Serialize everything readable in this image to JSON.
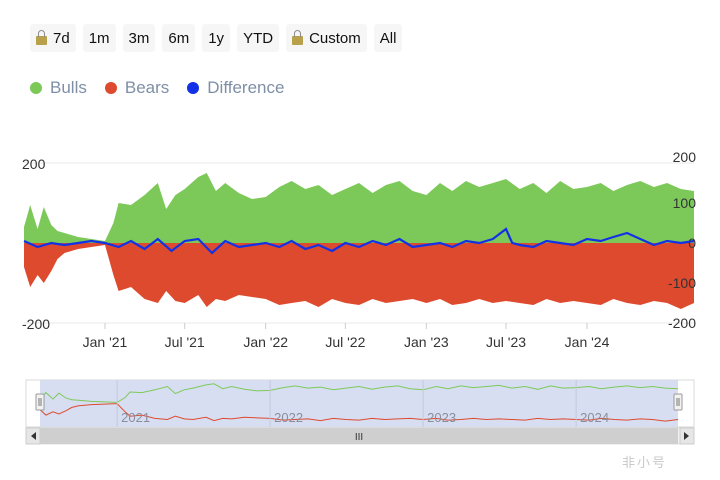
{
  "range_selector": {
    "buttons": [
      {
        "label": "7d",
        "locked": true
      },
      {
        "label": "1m",
        "locked": false
      },
      {
        "label": "3m",
        "locked": false
      },
      {
        "label": "6m",
        "locked": false
      },
      {
        "label": "1y",
        "locked": false
      },
      {
        "label": "YTD",
        "locked": false
      },
      {
        "label": "Custom",
        "locked": true
      },
      {
        "label": "All",
        "locked": false
      }
    ]
  },
  "watermark": "非小号",
  "chart_data": {
    "type": "area",
    "title": "",
    "x_range": [
      "2020-07-01",
      "2024-08-31"
    ],
    "x_ticks": [
      {
        "date": "2021-01-01",
        "label": "Jan '21"
      },
      {
        "date": "2021-07-01",
        "label": "Jul '21"
      },
      {
        "date": "2022-01-01",
        "label": "Jan '22"
      },
      {
        "date": "2022-07-01",
        "label": "Jul '22"
      },
      {
        "date": "2023-01-01",
        "label": "Jan '23"
      },
      {
        "date": "2023-07-01",
        "label": "Jul '23"
      },
      {
        "date": "2024-01-01",
        "label": "Jan '24"
      }
    ],
    "y_left": {
      "range": [
        -200,
        200
      ],
      "ticks": [
        200,
        -200
      ]
    },
    "y_right": {
      "range": [
        -200,
        200
      ],
      "ticks": [
        200,
        100,
        0,
        -100,
        -200
      ]
    },
    "grid": true,
    "legend_position": "top-left",
    "series": [
      {
        "name": "Bulls",
        "color": "#7cc95a",
        "points": [
          [
            "2020-07-01",
            40
          ],
          [
            "2020-07-15",
            95
          ],
          [
            "2020-08-01",
            35
          ],
          [
            "2020-08-15",
            90
          ],
          [
            "2020-09-01",
            45
          ],
          [
            "2020-09-15",
            30
          ],
          [
            "2020-10-01",
            25
          ],
          [
            "2020-11-01",
            15
          ],
          [
            "2020-12-01",
            10
          ],
          [
            "2021-01-01",
            5
          ],
          [
            "2021-01-20",
            50
          ],
          [
            "2021-02-01",
            100
          ],
          [
            "2021-03-01",
            95
          ],
          [
            "2021-04-01",
            120
          ],
          [
            "2021-05-01",
            150
          ],
          [
            "2021-05-20",
            85
          ],
          [
            "2021-06-10",
            120
          ],
          [
            "2021-07-01",
            135
          ],
          [
            "2021-08-01",
            165
          ],
          [
            "2021-08-20",
            175
          ],
          [
            "2021-09-10",
            130
          ],
          [
            "2021-10-01",
            150
          ],
          [
            "2021-11-01",
            125
          ],
          [
            "2021-12-01",
            110
          ],
          [
            "2022-01-01",
            115
          ],
          [
            "2022-02-01",
            140
          ],
          [
            "2022-03-01",
            155
          ],
          [
            "2022-04-01",
            135
          ],
          [
            "2022-05-01",
            145
          ],
          [
            "2022-06-01",
            120
          ],
          [
            "2022-07-01",
            135
          ],
          [
            "2022-08-01",
            150
          ],
          [
            "2022-09-01",
            125
          ],
          [
            "2022-10-01",
            145
          ],
          [
            "2022-11-01",
            155
          ],
          [
            "2022-12-01",
            130
          ],
          [
            "2023-01-01",
            120
          ],
          [
            "2023-02-01",
            150
          ],
          [
            "2023-03-01",
            130
          ],
          [
            "2023-04-01",
            155
          ],
          [
            "2023-05-01",
            140
          ],
          [
            "2023-06-01",
            150
          ],
          [
            "2023-07-01",
            160
          ],
          [
            "2023-08-01",
            135
          ],
          [
            "2023-09-01",
            150
          ],
          [
            "2023-10-01",
            125
          ],
          [
            "2023-11-01",
            155
          ],
          [
            "2023-12-01",
            135
          ],
          [
            "2024-01-01",
            140
          ],
          [
            "2024-02-01",
            150
          ],
          [
            "2024-03-01",
            130
          ],
          [
            "2024-04-01",
            145
          ],
          [
            "2024-05-01",
            155
          ],
          [
            "2024-06-01",
            140
          ],
          [
            "2024-07-01",
            150
          ],
          [
            "2024-08-01",
            135
          ],
          [
            "2024-08-31",
            130
          ]
        ]
      },
      {
        "name": "Bears",
        "color": "#dd4a2e",
        "points": [
          [
            "2020-07-01",
            -60
          ],
          [
            "2020-07-15",
            -110
          ],
          [
            "2020-08-01",
            -80
          ],
          [
            "2020-08-15",
            -100
          ],
          [
            "2020-09-01",
            -70
          ],
          [
            "2020-09-15",
            -40
          ],
          [
            "2020-10-01",
            -25
          ],
          [
            "2020-11-01",
            -15
          ],
          [
            "2020-12-01",
            -10
          ],
          [
            "2021-01-01",
            -5
          ],
          [
            "2021-01-20",
            -80
          ],
          [
            "2021-02-01",
            -120
          ],
          [
            "2021-03-01",
            -110
          ],
          [
            "2021-04-01",
            -140
          ],
          [
            "2021-05-01",
            -150
          ],
          [
            "2021-05-20",
            -120
          ],
          [
            "2021-06-10",
            -145
          ],
          [
            "2021-07-01",
            -150
          ],
          [
            "2021-08-01",
            -130
          ],
          [
            "2021-08-20",
            -160
          ],
          [
            "2021-09-10",
            -140
          ],
          [
            "2021-10-01",
            -145
          ],
          [
            "2021-11-01",
            -130
          ],
          [
            "2021-12-01",
            -135
          ],
          [
            "2022-01-01",
            -140
          ],
          [
            "2022-02-01",
            -155
          ],
          [
            "2022-03-01",
            -150
          ],
          [
            "2022-04-01",
            -145
          ],
          [
            "2022-05-01",
            -160
          ],
          [
            "2022-06-01",
            -140
          ],
          [
            "2022-07-01",
            -150
          ],
          [
            "2022-08-01",
            -155
          ],
          [
            "2022-09-01",
            -140
          ],
          [
            "2022-10-01",
            -150
          ],
          [
            "2022-11-01",
            -145
          ],
          [
            "2022-12-01",
            -140
          ],
          [
            "2023-01-01",
            -150
          ],
          [
            "2023-02-01",
            -140
          ],
          [
            "2023-03-01",
            -155
          ],
          [
            "2023-04-01",
            -150
          ],
          [
            "2023-05-01",
            -140
          ],
          [
            "2023-06-01",
            -150
          ],
          [
            "2023-07-01",
            -145
          ],
          [
            "2023-08-01",
            -150
          ],
          [
            "2023-09-01",
            -155
          ],
          [
            "2023-10-01",
            -140
          ],
          [
            "2023-11-01",
            -150
          ],
          [
            "2023-12-01",
            -145
          ],
          [
            "2024-01-01",
            -150
          ],
          [
            "2024-02-01",
            -155
          ],
          [
            "2024-03-01",
            -140
          ],
          [
            "2024-04-01",
            -150
          ],
          [
            "2024-05-01",
            -155
          ],
          [
            "2024-06-01",
            -145
          ],
          [
            "2024-07-01",
            -150
          ],
          [
            "2024-08-01",
            -165
          ],
          [
            "2024-08-31",
            -150
          ]
        ]
      },
      {
        "name": "Difference",
        "color": "#1331e6",
        "points": [
          [
            "2020-07-01",
            5
          ],
          [
            "2020-08-01",
            -10
          ],
          [
            "2020-09-01",
            0
          ],
          [
            "2020-10-01",
            -5
          ],
          [
            "2020-11-01",
            0
          ],
          [
            "2020-12-01",
            5
          ],
          [
            "2021-01-01",
            0
          ],
          [
            "2021-02-01",
            -10
          ],
          [
            "2021-03-01",
            5
          ],
          [
            "2021-04-01",
            -15
          ],
          [
            "2021-05-01",
            10
          ],
          [
            "2021-06-01",
            -20
          ],
          [
            "2021-07-01",
            5
          ],
          [
            "2021-08-01",
            10
          ],
          [
            "2021-09-01",
            -25
          ],
          [
            "2021-10-01",
            5
          ],
          [
            "2021-11-01",
            -10
          ],
          [
            "2021-12-01",
            -5
          ],
          [
            "2022-01-01",
            0
          ],
          [
            "2022-02-01",
            -10
          ],
          [
            "2022-03-01",
            5
          ],
          [
            "2022-04-01",
            -15
          ],
          [
            "2022-05-01",
            -5
          ],
          [
            "2022-06-01",
            -20
          ],
          [
            "2022-07-01",
            0
          ],
          [
            "2022-08-01",
            -10
          ],
          [
            "2022-09-01",
            5
          ],
          [
            "2022-10-01",
            -5
          ],
          [
            "2022-11-01",
            10
          ],
          [
            "2022-12-01",
            -10
          ],
          [
            "2023-01-01",
            -5
          ],
          [
            "2023-02-01",
            0
          ],
          [
            "2023-03-01",
            -10
          ],
          [
            "2023-04-01",
            5
          ],
          [
            "2023-05-01",
            0
          ],
          [
            "2023-06-01",
            10
          ],
          [
            "2023-07-01",
            35
          ],
          [
            "2023-07-15",
            0
          ],
          [
            "2023-08-01",
            -5
          ],
          [
            "2023-09-01",
            -10
          ],
          [
            "2023-10-01",
            5
          ],
          [
            "2023-11-01",
            0
          ],
          [
            "2023-12-01",
            -5
          ],
          [
            "2024-01-01",
            10
          ],
          [
            "2024-02-01",
            5
          ],
          [
            "2024-03-01",
            15
          ],
          [
            "2024-04-01",
            25
          ],
          [
            "2024-05-01",
            10
          ],
          [
            "2024-06-01",
            -5
          ],
          [
            "2024-07-01",
            5
          ],
          [
            "2024-08-01",
            0
          ],
          [
            "2024-08-31",
            5
          ]
        ]
      }
    ],
    "navigator": {
      "x_range": [
        "2020-07-01",
        "2024-08-31"
      ],
      "labels": [
        "2021",
        "2022",
        "2023",
        "2024"
      ],
      "label_dates": [
        "2021-01-01",
        "2022-01-01",
        "2023-01-01",
        "2024-01-01"
      ],
      "scroll_grip": "III"
    }
  }
}
